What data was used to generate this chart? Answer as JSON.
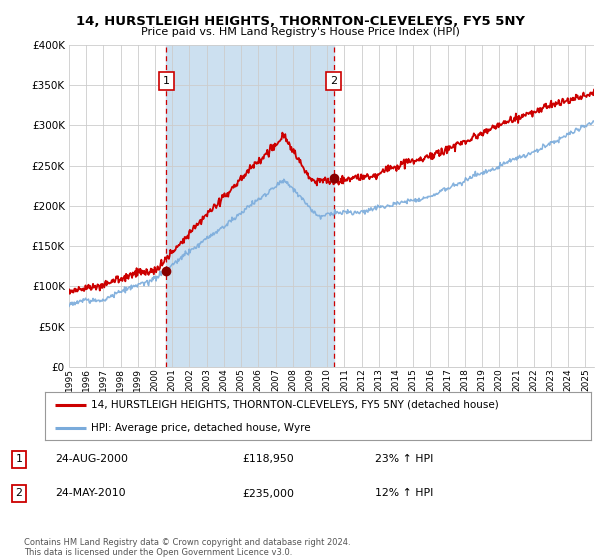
{
  "title": "14, HURSTLEIGH HEIGHTS, THORNTON-CLEVELEYS, FY5 5NY",
  "subtitle": "Price paid vs. HM Land Registry's House Price Index (HPI)",
  "legend_line1": "14, HURSTLEIGH HEIGHTS, THORNTON-CLEVELEYS, FY5 5NY (detached house)",
  "legend_line2": "HPI: Average price, detached house, Wyre",
  "sale1_date": "24-AUG-2000",
  "sale1_price": "£118,950",
  "sale1_hpi": "23% ↑ HPI",
  "sale2_date": "24-MAY-2010",
  "sale2_price": "£235,000",
  "sale2_hpi": "12% ↑ HPI",
  "footer": "Contains HM Land Registry data © Crown copyright and database right 2024.\nThis data is licensed under the Open Government Licence v3.0.",
  "sale1_year": 2000.65,
  "sale2_year": 2010.39,
  "sale1_value": 118950,
  "sale2_value": 235000,
  "price_line_color": "#cc0000",
  "hpi_line_color": "#7aabdb",
  "dashed_vline_color": "#cc0000",
  "marker_color": "#880000",
  "shade_color": "#cce0f0",
  "ylim": [
    0,
    400000
  ],
  "xlim_start": 1995,
  "xlim_end": 2025.5,
  "background_color": "#ffffff",
  "plot_bg_color": "#ffffff",
  "grid_color": "#cccccc"
}
